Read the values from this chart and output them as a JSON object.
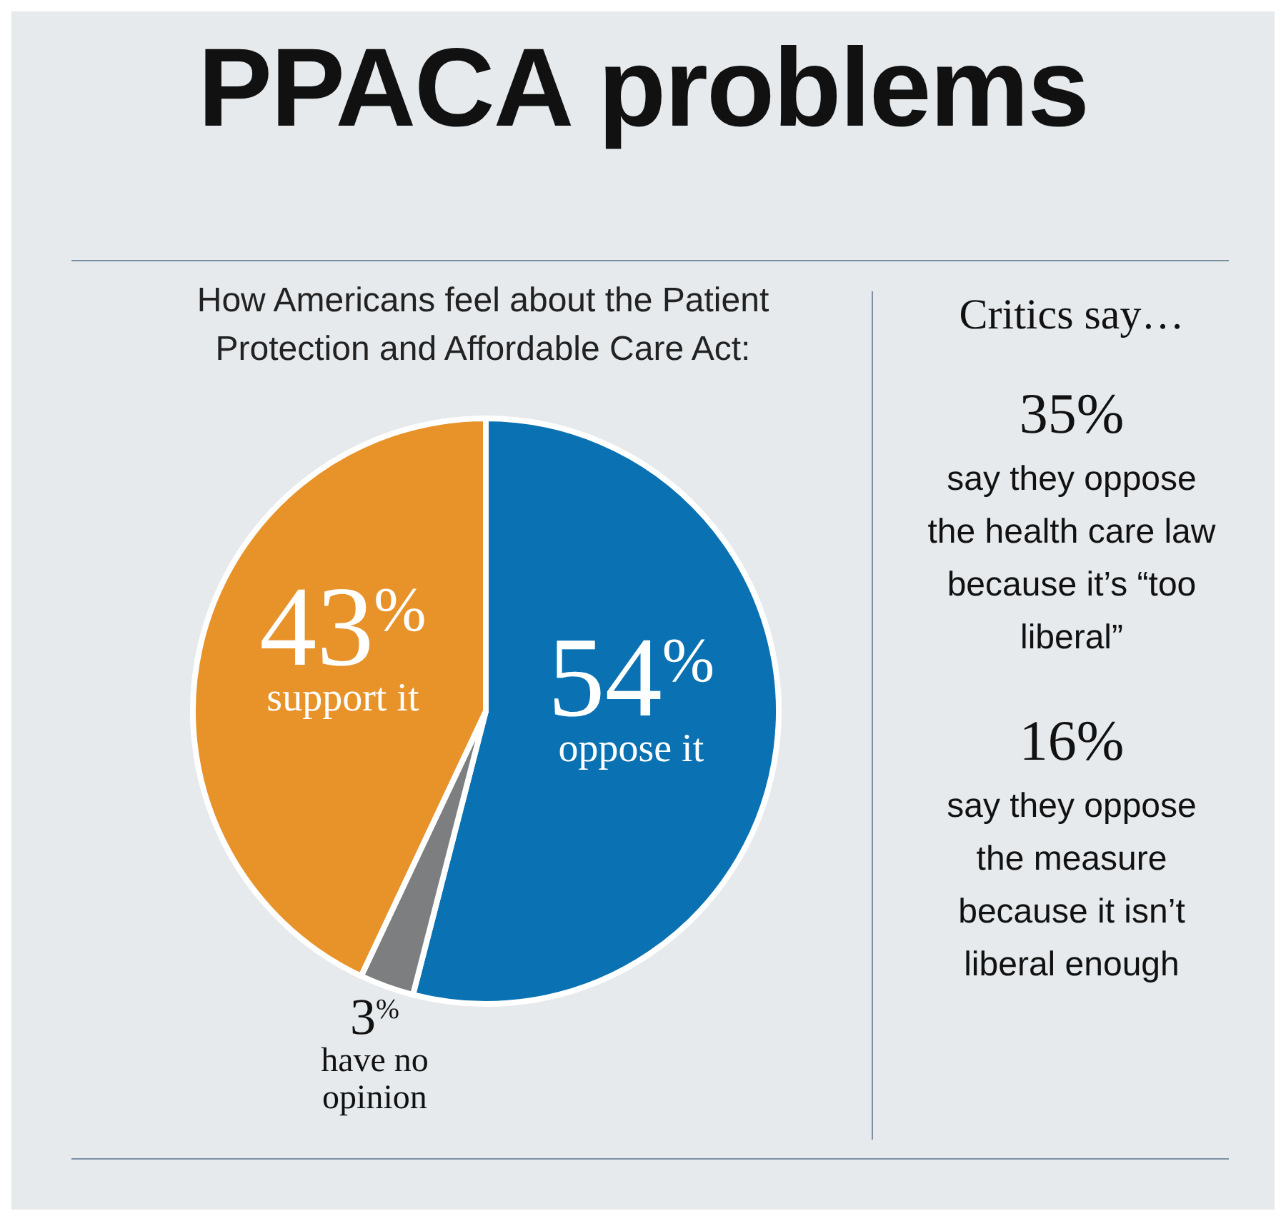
{
  "chart_data": [
    {
      "type": "pie",
      "title": "PPACA problems",
      "subtitle": "How Americans feel about the Patient Protection and Affordable Care Act:",
      "categories": [
        "oppose it",
        "have no opinion",
        "support it"
      ],
      "values": [
        54,
        3,
        43
      ],
      "value_labels": [
        "54$^{%}$",
        "3$^{%}$",
        "43$^{%}$"
      ],
      "colors": [
        "#0a72b2",
        "#7d7e80",
        "#e8922a"
      ],
      "legend": false
    },
    {
      "type": "other",
      "title": "Critics say…",
      "annotations": [
        "35%",
        "say they oppose the health care law because it’s “too liberal”",
        "16%",
        "say they oppose the measure because it isn’t liberal enough"
      ]
    }
  ]
}
